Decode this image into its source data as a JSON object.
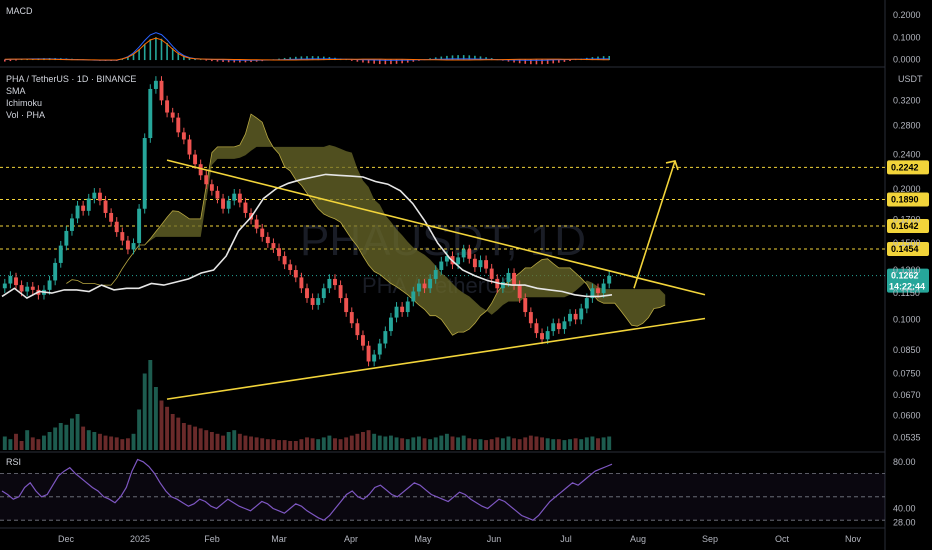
{
  "chart_data": [
    {
      "type": "line",
      "panel": "macd",
      "title": "MACD",
      "y_ticks": [
        "0.2000",
        "0.1000",
        "0.0000"
      ],
      "ylim": [
        -0.02,
        0.25
      ]
    },
    {
      "type": "candlestick",
      "panel": "price",
      "title": "PHA / TetherUS · 1D · BINANCE",
      "indicators": [
        "SMA",
        "Ichimoku",
        "Vol · PHA"
      ],
      "watermark_symbol": "PHAUSDT, 1D",
      "watermark_sub": "PHA / TetherUS",
      "currency": "USDT",
      "y_scale": "log",
      "y_ticks": [
        "0.3200",
        "0.2800",
        "0.2400",
        "0.2000",
        "0.1700",
        "0.1500",
        "0.1300",
        "0.1150",
        "0.1000",
        "0.0850",
        "0.0750",
        "0.0670",
        "0.0600",
        "0.0535"
      ],
      "ylim": [
        0.05,
        0.38
      ],
      "x_labels": [
        "Dec",
        "2025",
        "Feb",
        "Mar",
        "Apr",
        "May",
        "Jun",
        "Jul",
        "Aug",
        "Sep",
        "Oct",
        "Nov"
      ],
      "horizontal_levels": [
        0.2242,
        0.189,
        0.1642,
        0.1454
      ],
      "level_labels": [
        "0.2242",
        "0.1890",
        "0.1642",
        "0.1454"
      ],
      "last_price": "0.1262",
      "countdown": "14:22:44",
      "triangle_upper": {
        "start": 0.233,
        "end": 0.114
      },
      "triangle_lower": {
        "start": 0.0655,
        "end": 0.1005
      },
      "target_arrow": {
        "from": 0.118,
        "to": 0.232
      },
      "sma_path": [
        [
          0.113,
          0.118
        ],
        [
          0.112,
          0.116
        ],
        [
          0.115,
          0.117
        ],
        [
          0.117,
          0.116
        ],
        [
          0.12,
          0.117
        ],
        [
          0.118,
          0.118
        ],
        [
          0.121,
          0.12
        ],
        [
          0.122,
          0.124
        ],
        [
          0.128,
          0.13
        ],
        [
          0.14,
          0.16
        ],
        [
          0.172,
          0.19
        ],
        [
          0.2,
          0.206
        ],
        [
          0.21,
          0.213
        ],
        [
          0.216,
          0.215
        ],
        [
          0.214,
          0.213
        ],
        [
          0.208,
          0.205
        ],
        [
          0.198,
          0.185
        ],
        [
          0.168,
          0.15
        ],
        [
          0.138,
          0.13
        ],
        [
          0.126,
          0.123
        ],
        [
          0.121,
          0.12
        ],
        [
          0.12,
          0.118
        ],
        [
          0.117,
          0.116
        ],
        [
          0.114,
          0.113
        ],
        [
          0.113,
          0.114
        ]
      ],
      "candles": [
        [
          0.118,
          0.121
        ],
        [
          0.121,
          0.126
        ],
        [
          0.125,
          0.12
        ],
        [
          0.12,
          0.116
        ],
        [
          0.116,
          0.119
        ],
        [
          0.119,
          0.117
        ],
        [
          0.117,
          0.114
        ],
        [
          0.114,
          0.117
        ],
        [
          0.117,
          0.123
        ],
        [
          0.123,
          0.135
        ],
        [
          0.135,
          0.148
        ],
        [
          0.148,
          0.16
        ],
        [
          0.16,
          0.171
        ],
        [
          0.171,
          0.183
        ],
        [
          0.183,
          0.178
        ],
        [
          0.178,
          0.19
        ],
        [
          0.19,
          0.196
        ],
        [
          0.196,
          0.188
        ],
        [
          0.188,
          0.176
        ],
        [
          0.176,
          0.168
        ],
        [
          0.168,
          0.159
        ],
        [
          0.159,
          0.152
        ],
        [
          0.152,
          0.145
        ],
        [
          0.145,
          0.15
        ],
        [
          0.15,
          0.18
        ],
        [
          0.18,
          0.262
        ],
        [
          0.262,
          0.34
        ],
        [
          0.34,
          0.355
        ],
        [
          0.355,
          0.32
        ],
        [
          0.32,
          0.3
        ],
        [
          0.3,
          0.292
        ],
        [
          0.292,
          0.27
        ],
        [
          0.27,
          0.26
        ],
        [
          0.26,
          0.24
        ],
        [
          0.24,
          0.228
        ],
        [
          0.228,
          0.215
        ],
        [
          0.215,
          0.205
        ],
        [
          0.205,
          0.198
        ],
        [
          0.198,
          0.19
        ],
        [
          0.19,
          0.18
        ],
        [
          0.18,
          0.188
        ],
        [
          0.188,
          0.195
        ],
        [
          0.195,
          0.186
        ],
        [
          0.186,
          0.176
        ],
        [
          0.176,
          0.17
        ],
        [
          0.17,
          0.162
        ],
        [
          0.162,
          0.155
        ],
        [
          0.155,
          0.15
        ],
        [
          0.15,
          0.146
        ],
        [
          0.146,
          0.14
        ],
        [
          0.14,
          0.134
        ],
        [
          0.134,
          0.13
        ],
        [
          0.13,
          0.125
        ],
        [
          0.125,
          0.118
        ],
        [
          0.118,
          0.112
        ],
        [
          0.112,
          0.108
        ],
        [
          0.108,
          0.112
        ],
        [
          0.112,
          0.118
        ],
        [
          0.118,
          0.124
        ],
        [
          0.124,
          0.12
        ],
        [
          0.12,
          0.112
        ],
        [
          0.112,
          0.104
        ],
        [
          0.104,
          0.098
        ],
        [
          0.098,
          0.092
        ],
        [
          0.092,
          0.087
        ],
        [
          0.087,
          0.08
        ],
        [
          0.08,
          0.083
        ],
        [
          0.083,
          0.088
        ],
        [
          0.088,
          0.094
        ],
        [
          0.094,
          0.101
        ],
        [
          0.101,
          0.107
        ],
        [
          0.107,
          0.104
        ],
        [
          0.104,
          0.11
        ],
        [
          0.11,
          0.116
        ],
        [
          0.116,
          0.121
        ],
        [
          0.121,
          0.118
        ],
        [
          0.118,
          0.124
        ],
        [
          0.124,
          0.13
        ],
        [
          0.13,
          0.136
        ],
        [
          0.136,
          0.14
        ],
        [
          0.14,
          0.134
        ],
        [
          0.134,
          0.139
        ],
        [
          0.139,
          0.145
        ],
        [
          0.145,
          0.138
        ],
        [
          0.138,
          0.132
        ],
        [
          0.132,
          0.137
        ],
        [
          0.137,
          0.131
        ],
        [
          0.131,
          0.124
        ],
        [
          0.124,
          0.118
        ],
        [
          0.118,
          0.122
        ],
        [
          0.122,
          0.128
        ],
        [
          0.128,
          0.12
        ],
        [
          0.12,
          0.112
        ],
        [
          0.112,
          0.104
        ],
        [
          0.104,
          0.098
        ],
        [
          0.098,
          0.093
        ],
        [
          0.093,
          0.09
        ],
        [
          0.09,
          0.094
        ],
        [
          0.094,
          0.098
        ],
        [
          0.098,
          0.095
        ],
        [
          0.095,
          0.099
        ],
        [
          0.099,
          0.103
        ],
        [
          0.103,
          0.1
        ],
        [
          0.1,
          0.106
        ],
        [
          0.106,
          0.112
        ],
        [
          0.112,
          0.118
        ],
        [
          0.118,
          0.115
        ],
        [
          0.115,
          0.121
        ],
        [
          0.121,
          0.126
        ]
      ],
      "volume": [
        0.15,
        0.12,
        0.18,
        0.1,
        0.22,
        0.14,
        0.12,
        0.16,
        0.2,
        0.25,
        0.3,
        0.28,
        0.35,
        0.4,
        0.26,
        0.22,
        0.2,
        0.18,
        0.16,
        0.15,
        0.14,
        0.12,
        0.13,
        0.18,
        0.45,
        0.85,
        1.0,
        0.7,
        0.55,
        0.48,
        0.4,
        0.36,
        0.3,
        0.28,
        0.26,
        0.24,
        0.22,
        0.2,
        0.18,
        0.16,
        0.2,
        0.22,
        0.18,
        0.16,
        0.15,
        0.14,
        0.13,
        0.12,
        0.12,
        0.11,
        0.11,
        0.1,
        0.1,
        0.12,
        0.14,
        0.13,
        0.12,
        0.14,
        0.16,
        0.13,
        0.12,
        0.14,
        0.16,
        0.18,
        0.2,
        0.22,
        0.18,
        0.16,
        0.15,
        0.16,
        0.14,
        0.13,
        0.12,
        0.14,
        0.15,
        0.13,
        0.12,
        0.14,
        0.16,
        0.18,
        0.15,
        0.14,
        0.16,
        0.13,
        0.12,
        0.12,
        0.11,
        0.12,
        0.14,
        0.13,
        0.15,
        0.13,
        0.12,
        0.14,
        0.16,
        0.15,
        0.14,
        0.13,
        0.12,
        0.12,
        0.11,
        0.12,
        0.13,
        0.12,
        0.14,
        0.15,
        0.13,
        0.14,
        0.15
      ]
    },
    {
      "type": "line",
      "panel": "rsi",
      "title": "RSI",
      "y_ticks": [
        "80.00",
        "40.00",
        "28.00"
      ],
      "ylim": [
        25,
        85
      ],
      "values": [
        55,
        52,
        48,
        50,
        58,
        62,
        55,
        50,
        52,
        60,
        68,
        72,
        75,
        70,
        66,
        62,
        58,
        55,
        50,
        48,
        45,
        50,
        58,
        72,
        82,
        80,
        76,
        70,
        62,
        55,
        50,
        48,
        45,
        42,
        44,
        48,
        46,
        42,
        40,
        44,
        48,
        45,
        42,
        40,
        38,
        42,
        46,
        44,
        40,
        38,
        36,
        40,
        44,
        42,
        38,
        35,
        32,
        30,
        34,
        40,
        46,
        52,
        55,
        50,
        48,
        52,
        58,
        60,
        56,
        52,
        50,
        54,
        58,
        62,
        60,
        56,
        52,
        50,
        48,
        46,
        50,
        54,
        52,
        48,
        45,
        42,
        40,
        44,
        48,
        46,
        42,
        38,
        34,
        32,
        30,
        34,
        40,
        46,
        50,
        54,
        58,
        62,
        60,
        64,
        68,
        72,
        74,
        76,
        78
      ]
    }
  ]
}
